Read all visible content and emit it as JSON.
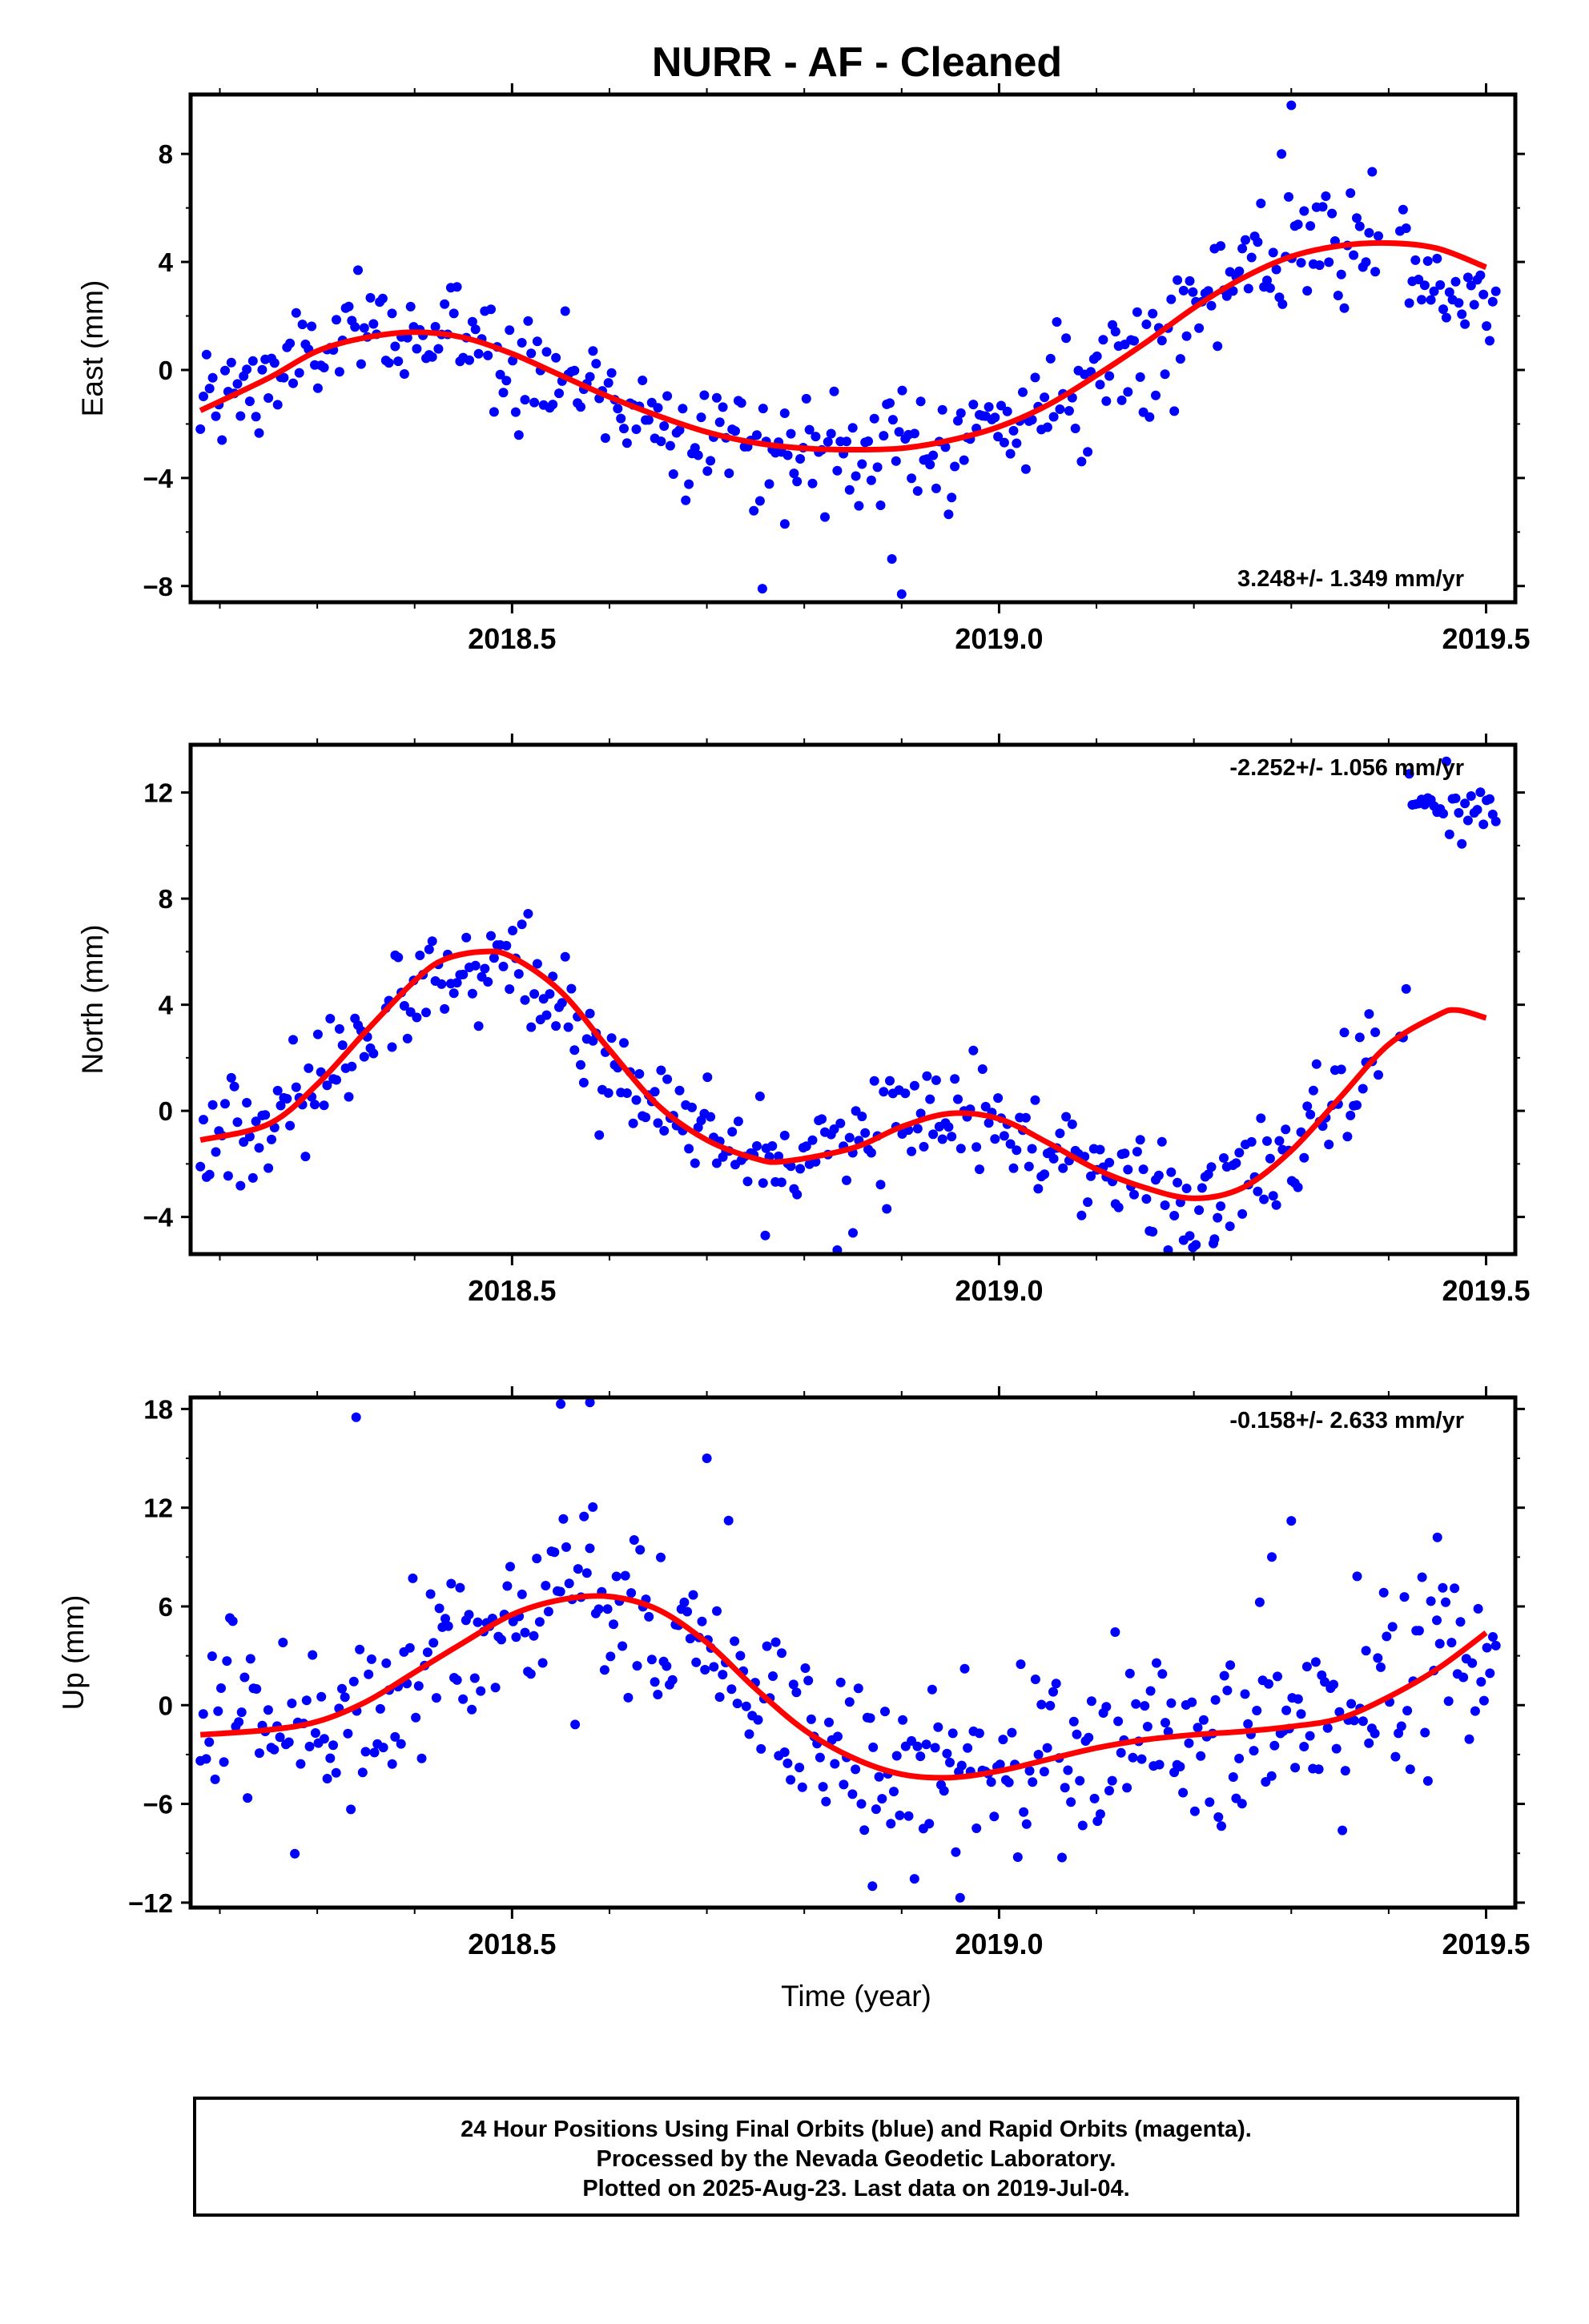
{
  "chart_data": {
    "type": "scatter",
    "title": "NURR  - AF - Cleaned",
    "xlabel": "Time (year)",
    "xlim": [
      2018.17,
      2019.53
    ],
    "x_ticks": [
      2018.5,
      2019.0,
      2019.5
    ],
    "x_tick_labels": [
      "2018.5",
      "2019.0",
      "2019.5"
    ],
    "colors": {
      "points": "#0000ff",
      "fit": "#ff0000"
    },
    "panels": [
      {
        "name": "east",
        "ylabel": "East (mm)",
        "ylim": [
          -8.6,
          10.2
        ],
        "y_ticks": [
          8,
          4,
          0,
          -4,
          -8
        ],
        "y_tick_labels": [
          "8",
          "4",
          "0",
          "−4",
          "−8"
        ],
        "rate_label": "3.248+/- 1.349 mm/yr",
        "rate_position": "bottom-right",
        "fit": {
          "x": [
            2018.18,
            2018.25,
            2018.3,
            2018.35,
            2018.4,
            2018.45,
            2018.5,
            2018.55,
            2018.6,
            2018.65,
            2018.7,
            2018.75,
            2018.8,
            2018.85,
            2018.9,
            2018.95,
            2019.0,
            2019.05,
            2019.1,
            2019.15,
            2019.2,
            2019.25,
            2019.3,
            2019.35,
            2019.4,
            2019.45,
            2019.5
          ],
          "y": [
            -1.5,
            -0.3,
            0.7,
            1.2,
            1.4,
            1.2,
            0.6,
            -0.2,
            -1.0,
            -1.7,
            -2.3,
            -2.7,
            -2.9,
            -2.95,
            -2.9,
            -2.6,
            -2.1,
            -1.3,
            -0.2,
            1.0,
            2.3,
            3.4,
            4.2,
            4.6,
            4.7,
            4.5,
            3.8
          ]
        },
        "points": {
          "mode": "noise",
          "sd": 1.05,
          "count": 420,
          "gaps": [
            [
              2019.39,
              2019.41
            ]
          ],
          "segments": [
            {
              "x": [
                2019.42,
                2019.51
              ],
              "mode": "flat",
              "base": 2.8,
              "sd": 0.6
            }
          ],
          "outliers": [
            [
              2018.757,
              -8.1
            ],
            [
              2018.9,
              -8.3
            ],
            [
              2018.89,
              -7.0
            ],
            [
              2019.3,
              9.8
            ],
            [
              2019.29,
              8.0
            ],
            [
              2018.78,
              -5.7
            ]
          ]
        }
      },
      {
        "name": "north",
        "ylabel": "North (mm)",
        "ylim": [
          -5.4,
          13.8
        ],
        "y_ticks": [
          12,
          8,
          4,
          0,
          -4
        ],
        "y_tick_labels": [
          "12",
          "8",
          "4",
          "0",
          "−4"
        ],
        "rate_label": "-2.252+/- 1.056 mm/yr",
        "rate_position": "top-right",
        "fit": {
          "x": [
            2018.18,
            2018.25,
            2018.3,
            2018.35,
            2018.4,
            2018.43,
            2018.47,
            2018.5,
            2018.55,
            2018.6,
            2018.65,
            2018.7,
            2018.75,
            2018.78,
            2018.85,
            2018.9,
            2018.95,
            2019.0,
            2019.05,
            2019.1,
            2019.15,
            2019.2,
            2019.25,
            2019.3,
            2019.35,
            2019.4,
            2019.45,
            2019.47,
            2019.5
          ],
          "y": [
            -1.1,
            -0.5,
            1.0,
            3.0,
            4.9,
            5.7,
            6.0,
            5.8,
            4.5,
            2.3,
            0.2,
            -1.1,
            -1.8,
            -1.9,
            -1.4,
            -0.6,
            -0.1,
            -0.3,
            -1.2,
            -2.2,
            -2.9,
            -3.3,
            -2.9,
            -1.5,
            0.5,
            2.5,
            3.6,
            3.8,
            3.5
          ]
        },
        "points": {
          "mode": "noise",
          "sd": 1.05,
          "count": 420,
          "gaps": [
            [
              2018.36,
              2018.37
            ]
          ],
          "segments": [
            {
              "x": [
                2018.36,
                2018.6
              ],
              "mode": "fit-offset",
              "offset": -1.8,
              "sd": 0.9
            },
            {
              "x": [
                2019.39,
                2019.41
              ],
              "mode": "skip"
            },
            {
              "x": [
                2019.42,
                2019.51
              ],
              "mode": "flat",
              "base": 11.6,
              "sd": 0.7
            }
          ],
          "outliers": [
            [
              2018.76,
              -4.7
            ],
            [
              2018.85,
              -4.6
            ],
            [
              2019.22,
              -5.0
            ]
          ]
        }
      },
      {
        "name": "up",
        "ylabel": "Up (mm)",
        "ylim": [
          -12.3,
          18.7
        ],
        "y_ticks": [
          18,
          12,
          6,
          0,
          -6,
          -12
        ],
        "y_tick_labels": [
          "18",
          "12",
          "6",
          "0",
          "−6",
          "−12"
        ],
        "rate_label": "-0.158+/- 2.633 mm/yr",
        "rate_position": "top-right",
        "fit": {
          "x": [
            2018.18,
            2018.25,
            2018.3,
            2018.35,
            2018.4,
            2018.45,
            2018.5,
            2018.55,
            2018.6,
            2018.65,
            2018.7,
            2018.75,
            2018.8,
            2018.85,
            2018.9,
            2018.95,
            2019.0,
            2019.05,
            2019.1,
            2019.15,
            2019.2,
            2019.25,
            2019.3,
            2019.35,
            2019.4,
            2019.45,
            2019.5
          ],
          "y": [
            -1.8,
            -1.5,
            -1.0,
            0.2,
            2.0,
            3.8,
            5.5,
            6.4,
            6.6,
            5.8,
            3.8,
            1.0,
            -1.5,
            -3.2,
            -4.2,
            -4.4,
            -4.0,
            -3.3,
            -2.6,
            -2.1,
            -1.8,
            -1.6,
            -1.3,
            -0.8,
            0.5,
            2.2,
            4.4
          ]
        },
        "points": {
          "mode": "noise",
          "sd": 2.9,
          "count": 440,
          "gaps": [],
          "segments": [],
          "outliers": [
            [
              2018.34,
              17.5
            ],
            [
              2018.58,
              18.4
            ],
            [
              2018.55,
              18.3
            ],
            [
              2018.7,
              15.0
            ],
            [
              2018.96,
              -11.7
            ],
            [
              2018.87,
              -11.0
            ],
            [
              2019.3,
              11.2
            ],
            [
              2019.28,
              9.0
            ],
            [
              2019.45,
              10.2
            ]
          ]
        }
      }
    ]
  },
  "footer": {
    "line1": "24 Hour Positions Using Final Orbits (blue) and Rapid Orbits (magenta).",
    "line2": "Processed by the Nevada Geodetic Laboratory.",
    "line3": "Plotted on 2025-Aug-23. Last data on 2019-Jul-04."
  }
}
